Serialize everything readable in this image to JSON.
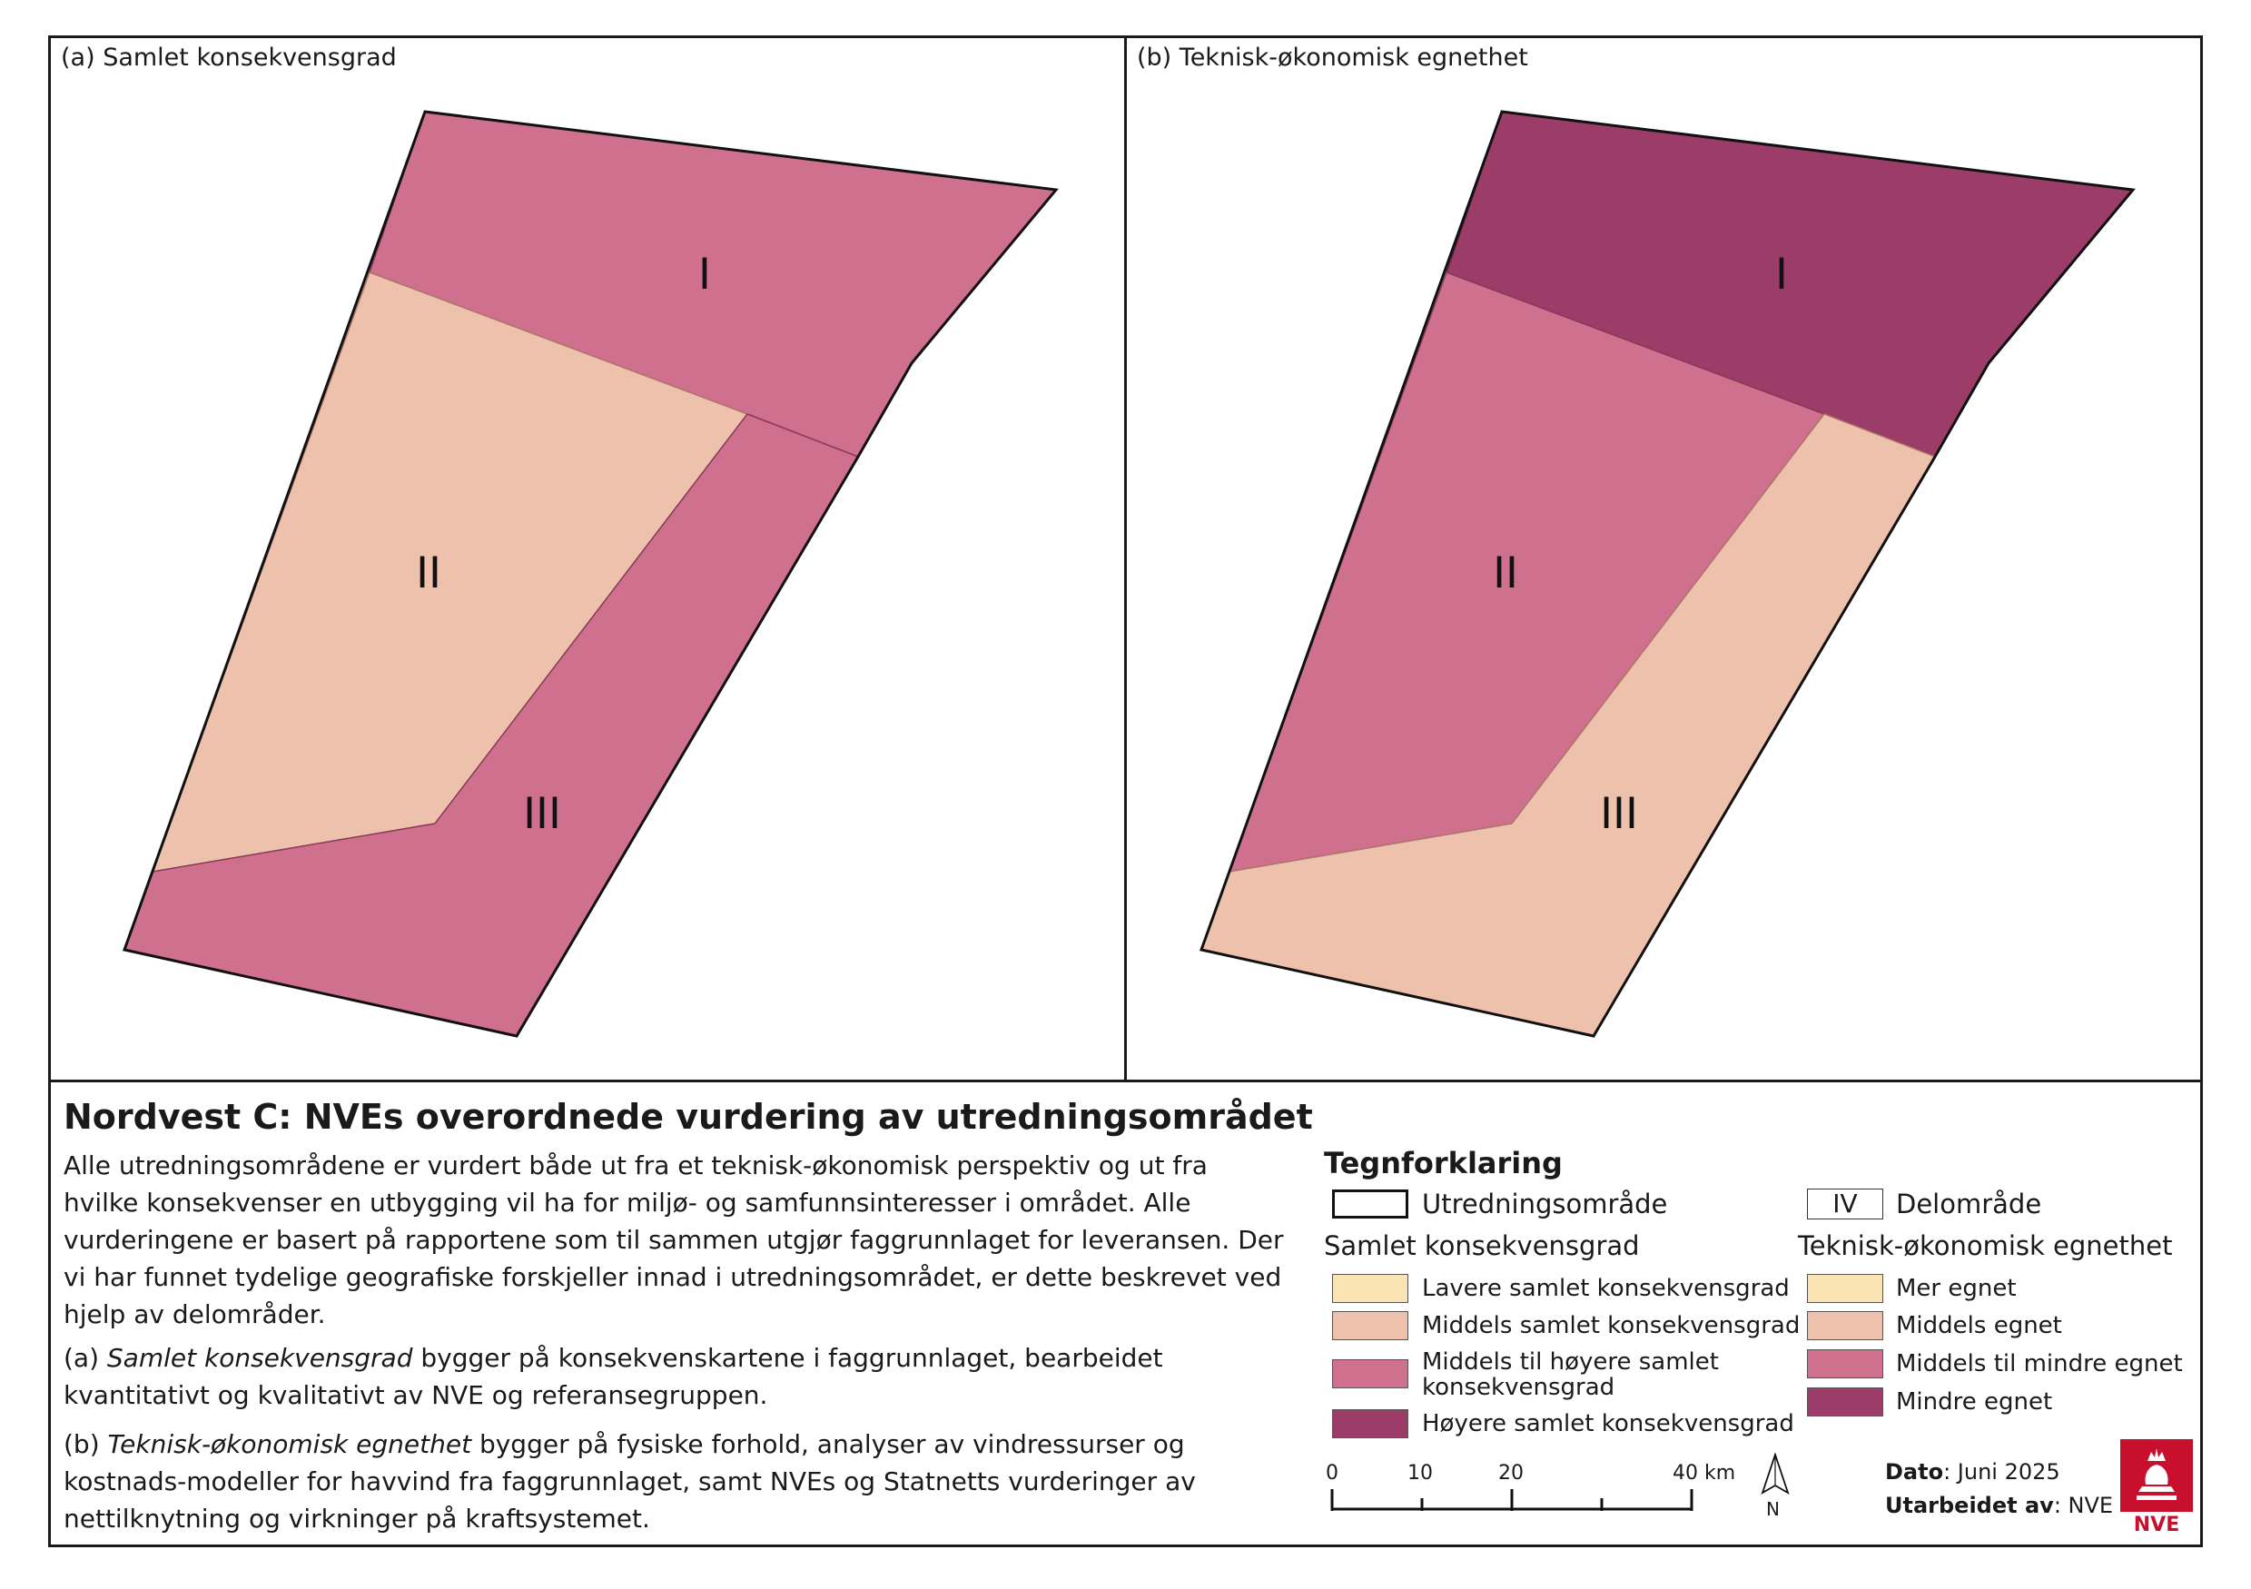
{
  "panels": {
    "a": {
      "title": "(a) Samlet konsekvensgrad",
      "zones": [
        {
          "label": "I",
          "class": "Middels til høyere samlet konsekvensgrad",
          "color": "#cf718e"
        },
        {
          "label": "II",
          "class": "Middels samlet konsekvensgrad",
          "color": "#eec1ad"
        },
        {
          "label": "III",
          "class": "Middels til høyere samlet konsekvensgrad",
          "color": "#cf718e"
        }
      ]
    },
    "b": {
      "title": "(b) Teknisk-økonomisk egnethet",
      "zones": [
        {
          "label": "I",
          "class": "Mindre egnet",
          "color": "#9b3c69"
        },
        {
          "label": "II",
          "class": "Middels til mindre egnet",
          "color": "#cf718e"
        },
        {
          "label": "III",
          "class": "Middels egnet",
          "color": "#eec1ad"
        }
      ]
    }
  },
  "info": {
    "title": "Nordvest C: NVEs overordnede vurdering av utredningsområdet",
    "p1": "Alle utredningsområdene er vurdert både ut fra et teknisk-økonomisk perspektiv og ut fra hvilke konsekvenser en utbygging vil ha for miljø- og samfunnsinteresser i området. Alle vurderingene er basert på rapportene som til sammen utgjør faggrunnlaget for leveransen. Der vi har funnet tydelige geografiske forskjeller innad i utredningsområdet, er dette beskrevet ved hjelp av delområder.",
    "p2_prefix": "(a) ",
    "p2_em": "Samlet konsekvensgrad",
    "p2_rest": " bygger på konsekvenskartene i faggrunnlaget, bearbeidet kvantitativt og kvalitativt av NVE og referansegruppen.",
    "p3_prefix": "(b) ",
    "p3_em": "Teknisk-økonomisk egnethet",
    "p3_rest": " bygger på fysiske forhold, analyser av vindressurser og kostnads-modeller for havvind fra faggrunnlaget, samt NVEs og Statnetts vurderinger av nettilknytning og virkninger på kraftsystemet."
  },
  "legend": {
    "title": "Tegnforklaring",
    "outline_label": "Utredningsområde",
    "subarea_symbol": "IV",
    "subarea_label": "Delområde",
    "konsekvens_heading": "Samlet konsekvensgrad",
    "konsekvens_items": [
      {
        "label": "Lavere samlet konsekvensgrad",
        "color": "#fbe4b4"
      },
      {
        "label": "Middels samlet konsekvensgrad",
        "color": "#eec1ad"
      },
      {
        "label": "Middels til høyere samlet konsekvensgrad",
        "color": "#cf718e"
      },
      {
        "label": "Høyere samlet konsekvensgrad",
        "color": "#9b3c69"
      }
    ],
    "egnethet_heading": "Teknisk-økonomisk egnethet",
    "egnethet_items": [
      {
        "label": "Mer egnet",
        "color": "#fbe4b4"
      },
      {
        "label": "Middels egnet",
        "color": "#eec1ad"
      },
      {
        "label": "Middels til mindre egnet",
        "color": "#cf718e"
      },
      {
        "label": "Mindre egnet",
        "color": "#9b3c69"
      }
    ]
  },
  "scale": {
    "ticks": [
      "0",
      "10",
      "20",
      "40 km"
    ],
    "north": "N"
  },
  "meta": {
    "date_label": "Dato",
    "date_value": ": Juni 2025",
    "author_label": "Utarbeidet av",
    "author_value": ": NVE",
    "logo_text": "NVE",
    "logo_color": "#c8102e"
  }
}
